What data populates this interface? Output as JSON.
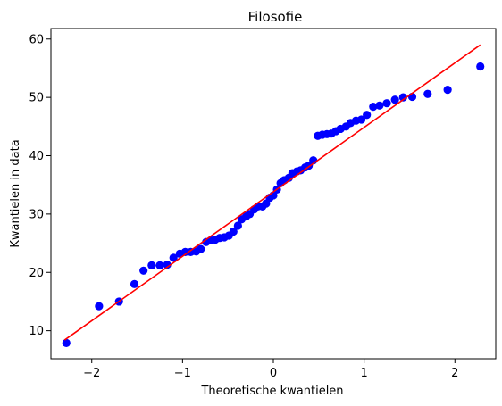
{
  "chart_data": {
    "type": "scatter",
    "title": "Filosofie",
    "xlabel": "Theoretische kwantielen",
    "ylabel": "Kwantielen in data",
    "xlim": [
      -2.45,
      2.45
    ],
    "ylim": [
      5.2,
      61.8
    ],
    "xticks": [
      -2,
      -1,
      0,
      1,
      2
    ],
    "xtick_labels": [
      "−2",
      "−1",
      "0",
      "1",
      "2"
    ],
    "yticks": [
      10,
      20,
      30,
      40,
      50,
      60
    ],
    "ytick_labels": [
      "10",
      "20",
      "30",
      "40",
      "50",
      "60"
    ],
    "grid": false,
    "marker_color": "#0000ff",
    "line_color": "#ff0000",
    "reference_line": {
      "x": [
        -2.3,
        2.28
      ],
      "y": [
        8.4,
        59.0
      ]
    },
    "points": {
      "x": [
        -2.28,
        -1.92,
        -1.7,
        -1.53,
        -1.43,
        -1.34,
        -1.25,
        -1.17,
        -1.1,
        -1.03,
        -0.97,
        -0.91,
        -0.85,
        -0.8,
        -0.74,
        -0.69,
        -0.64,
        -0.59,
        -0.54,
        -0.49,
        -0.44,
        -0.39,
        -0.35,
        -0.3,
        -0.26,
        -0.21,
        -0.17,
        -0.12,
        -0.08,
        -0.04,
        0.0,
        0.04,
        0.08,
        0.12,
        0.17,
        0.21,
        0.26,
        0.3,
        0.35,
        0.39,
        0.44,
        0.49,
        0.54,
        0.59,
        0.64,
        0.69,
        0.74,
        0.8,
        0.85,
        0.91,
        0.97,
        1.03,
        1.1,
        1.17,
        1.25,
        1.34,
        1.43,
        1.53,
        1.7,
        1.92,
        2.28
      ],
      "y": [
        7.9,
        14.2,
        15.0,
        18.0,
        20.3,
        21.2,
        21.2,
        21.3,
        22.5,
        23.2,
        23.5,
        23.5,
        23.6,
        24.0,
        25.2,
        25.5,
        25.6,
        25.9,
        26.0,
        26.3,
        27.0,
        28.0,
        29.1,
        29.6,
        30.0,
        30.8,
        31.3,
        31.3,
        31.8,
        32.8,
        33.2,
        34.2,
        35.3,
        35.8,
        36.2,
        37.0,
        37.3,
        37.5,
        38.0,
        38.3,
        39.2,
        43.4,
        43.6,
        43.7,
        43.8,
        44.2,
        44.6,
        45.0,
        45.6,
        46.0,
        46.2,
        47.0,
        48.4,
        48.6,
        49.0,
        49.6,
        50.0,
        50.1,
        50.6,
        51.3,
        55.3
      ]
    }
  }
}
